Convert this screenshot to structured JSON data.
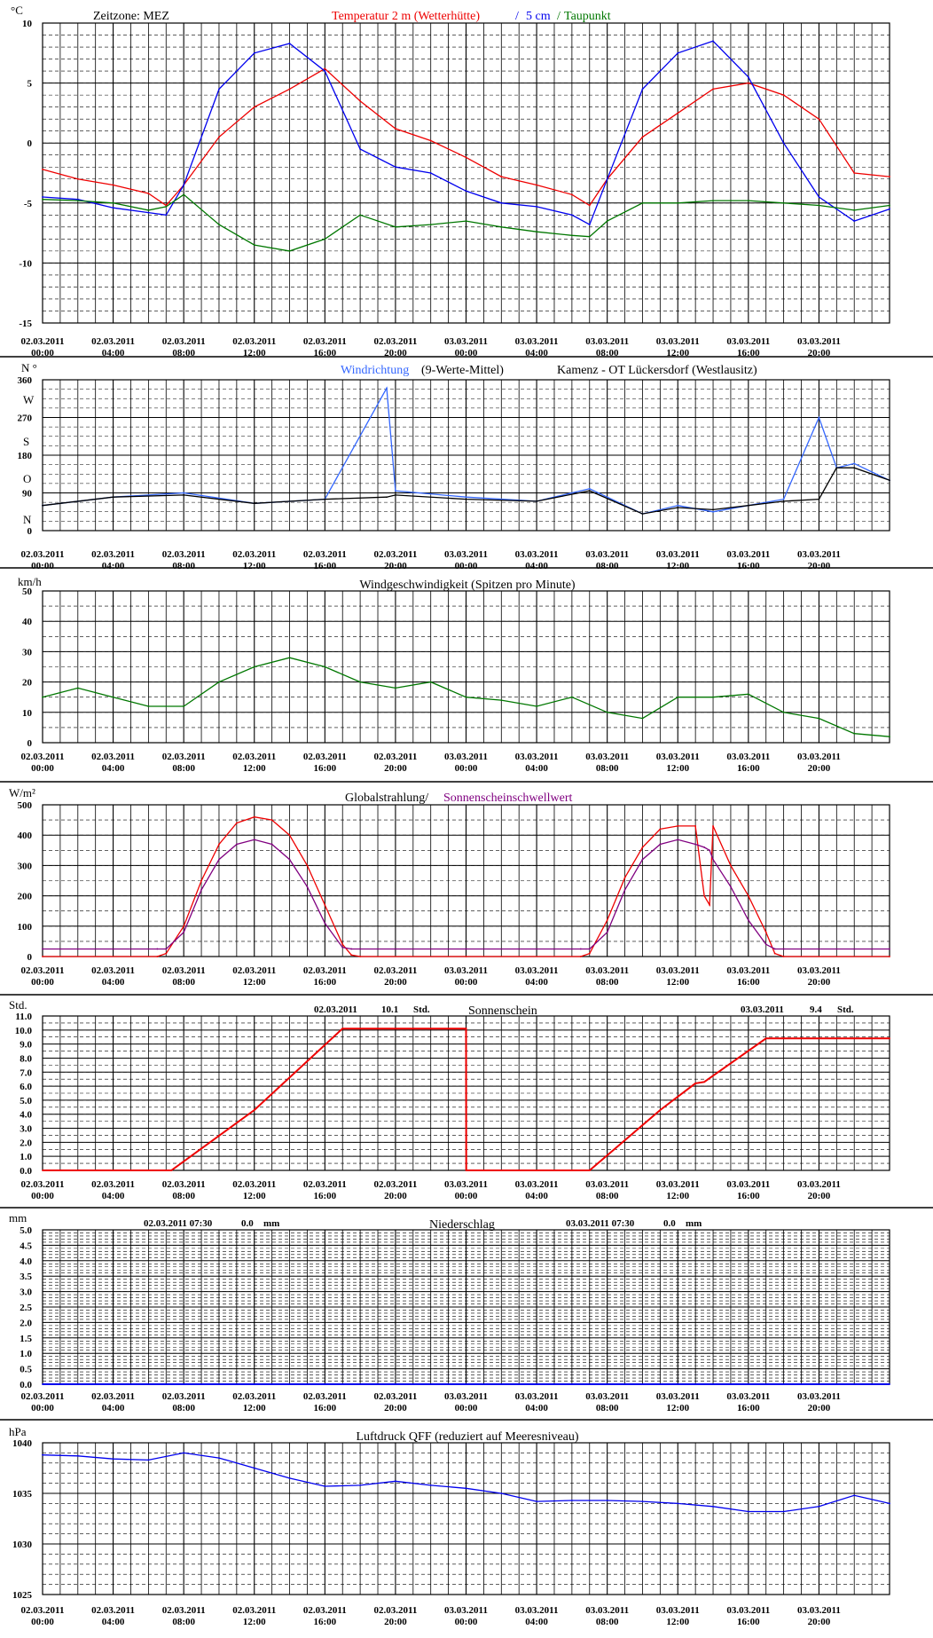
{
  "colors": {
    "red": "#ee0000",
    "blue": "#0000ee",
    "green": "#007700",
    "windblue": "#3366ff",
    "purple": "#800080",
    "black": "#000000"
  },
  "x_labels": [
    [
      "02.03.2011",
      "00:00"
    ],
    [
      "02.03.2011",
      "04:00"
    ],
    [
      "02.03.2011",
      "08:00"
    ],
    [
      "02.03.2011",
      "12:00"
    ],
    [
      "02.03.2011",
      "16:00"
    ],
    [
      "02.03.2011",
      "20:00"
    ],
    [
      "03.03.2011",
      "00:00"
    ],
    [
      "03.03.2011",
      "04:00"
    ],
    [
      "03.03.2011",
      "08:00"
    ],
    [
      "03.03.2011",
      "12:00"
    ],
    [
      "03.03.2011",
      "16:00"
    ],
    [
      "03.03.2011",
      "20:00"
    ]
  ],
  "panels": {
    "temperature": {
      "unit": "°C",
      "zone": "Zeitzone: MEZ",
      "title_red": "Temperatur 2 m (Wetterhütte)",
      "sep1": "/",
      "title_blue": "5 cm",
      "sep2": "/",
      "title_green": "Taupunkt",
      "y_ticks": [
        "10",
        "5",
        "0",
        "-5",
        "-10",
        "-15"
      ]
    },
    "wind_direction": {
      "unit": "N °",
      "title_blue": "Windrichtung",
      "title_black": "(9-Werte-Mittel)",
      "location": "Kamenz - OT Lückersdorf (Westlausitz)",
      "y_ticks": [
        "360",
        "270",
        "180",
        "90",
        "0"
      ],
      "compass": [
        "W",
        "S",
        "O",
        "N"
      ]
    },
    "wind_speed": {
      "unit": "km/h",
      "title": "Windgeschwindigkeit (Spitzen pro Minute)",
      "y_ticks": [
        "50",
        "40",
        "30",
        "20",
        "10",
        "0"
      ]
    },
    "radiation": {
      "unit": "W/m²",
      "title_black": "Globalstrahlung/",
      "title_purple": "Sonnenscheinschwellwert",
      "y_ticks": [
        "500",
        "400",
        "300",
        "200",
        "100",
        "0"
      ]
    },
    "sunshine": {
      "unit": "Std.",
      "title": "Sonnenschein",
      "day1_date": "02.03.2011",
      "day1_value": "10.1",
      "day1_unit": "Std.",
      "day2_date": "03.03.2011",
      "day2_value": "9.4",
      "day2_unit": "Std.",
      "y_ticks": [
        "11.0",
        "10.0",
        "9.0",
        "8.0",
        "7.0",
        "6.0",
        "5.0",
        "4.0",
        "3.0",
        "2.0",
        "1.0",
        "0.0"
      ]
    },
    "precipitation": {
      "unit": "mm",
      "title": "Niederschlag",
      "day1_stamp": "02.03.2011 07:30",
      "day1_value": "0.0",
      "day1_unit": "mm",
      "day2_stamp": "03.03.2011 07:30",
      "day2_value": "0.0",
      "day2_unit": "mm",
      "y_ticks": [
        "5.0",
        "4.5",
        "4.0",
        "3.5",
        "3.0",
        "2.5",
        "2.0",
        "1.5",
        "1.0",
        "0.5",
        "0.0"
      ]
    },
    "pressure": {
      "unit": "hPa",
      "title": "Luftdruck QFF (reduziert auf Meeresniveau)",
      "y_ticks": [
        "1040",
        "1035",
        "1030",
        "1025"
      ]
    }
  },
  "chart_data": [
    {
      "type": "line",
      "title": "Temperatur 2 m (Wetterhütte) / 5 cm / Taupunkt",
      "ylabel": "°C",
      "ylim": [
        -15,
        10
      ],
      "x_hours": [
        0,
        2,
        4,
        6,
        7,
        8,
        10,
        12,
        14,
        16,
        18,
        20,
        22,
        24,
        26,
        28,
        30,
        31,
        32,
        34,
        36,
        38,
        40,
        42,
        44,
        46,
        48
      ],
      "series": [
        {
          "name": "Temperatur 2 m (Wetterhütte)",
          "color": "#ee0000",
          "values": [
            -2.2,
            -3.0,
            -3.5,
            -4.2,
            -5.2,
            -3.5,
            0.5,
            3.0,
            4.5,
            6.2,
            3.5,
            1.2,
            0.2,
            -1.2,
            -2.8,
            -3.5,
            -4.3,
            -5.2,
            -3.0,
            0.5,
            2.5,
            4.5,
            5.0,
            4.0,
            2.0,
            -2.5,
            -2.8
          ]
        },
        {
          "name": "5 cm",
          "color": "#0000ee",
          "values": [
            -4.5,
            -4.7,
            -5.4,
            -5.8,
            -6.0,
            -3.5,
            4.5,
            7.5,
            8.3,
            6.0,
            -0.5,
            -2.0,
            -2.5,
            -4.0,
            -5.0,
            -5.3,
            -6.0,
            -6.8,
            -3.0,
            4.5,
            7.5,
            8.5,
            5.5,
            0.0,
            -4.5,
            -6.5,
            -5.5
          ]
        },
        {
          "name": "Taupunkt",
          "color": "#007700",
          "values": [
            -4.7,
            -4.8,
            -5.0,
            -5.6,
            -5.3,
            -4.3,
            -6.8,
            -8.5,
            -9.0,
            -8.0,
            -6.0,
            -7.0,
            -6.8,
            -6.5,
            -7.0,
            -7.4,
            -7.7,
            -7.8,
            -6.5,
            -5.0,
            -5.0,
            -4.8,
            -4.8,
            -5.0,
            -5.2,
            -5.6,
            -5.2
          ]
        }
      ]
    },
    {
      "type": "line",
      "title": "Windrichtung (9-Werte-Mittel)",
      "ylabel": "N °",
      "ylim": [
        0,
        360
      ],
      "x_hours": [
        0,
        4,
        8,
        12,
        16,
        19.5,
        20,
        24,
        28,
        31,
        34,
        36,
        38,
        40,
        42,
        44,
        45,
        46,
        48
      ],
      "series": [
        {
          "name": "Windrichtung",
          "color": "#3366ff",
          "values": [
            60,
            80,
            90,
            65,
            75,
            340,
            95,
            80,
            70,
            100,
            40,
            60,
            45,
            60,
            75,
            270,
            150,
            160,
            120
          ]
        },
        {
          "name": "(9-Werte-Mittel)",
          "color": "#000000",
          "values": [
            60,
            80,
            85,
            65,
            75,
            80,
            85,
            75,
            70,
            95,
            40,
            55,
            50,
            60,
            70,
            75,
            150,
            150,
            120
          ]
        }
      ]
    },
    {
      "type": "line",
      "title": "Windgeschwindigkeit (Spitzen pro Minute)",
      "ylabel": "km/h",
      "ylim": [
        0,
        50
      ],
      "x_hours": [
        0,
        2,
        4,
        6,
        8,
        10,
        12,
        14,
        16,
        18,
        20,
        22,
        24,
        26,
        28,
        30,
        32,
        34,
        36,
        38,
        40,
        42,
        44,
        46,
        48
      ],
      "series": [
        {
          "name": "Windgeschwindigkeit (Spitzen pro Minute)",
          "color": "#007700",
          "values": [
            15,
            18,
            15,
            12,
            12,
            20,
            25,
            28,
            25,
            20,
            18,
            20,
            15,
            14,
            12,
            15,
            10,
            8,
            15,
            15,
            16,
            10,
            8,
            3,
            2
          ]
        }
      ]
    },
    {
      "type": "line",
      "title": "Globalstrahlung/ Sonnenscheinschwellwert",
      "ylabel": "W/m²",
      "ylim": [
        0,
        500
      ],
      "x_hours": [
        0,
        6.5,
        7,
        8,
        9,
        10,
        11,
        12,
        13,
        14,
        15,
        16,
        17,
        17.5,
        18,
        24,
        30.5,
        31,
        32,
        33,
        34,
        35,
        36,
        37,
        37.5,
        37.8,
        38,
        39,
        40,
        41,
        41.5,
        42,
        48
      ],
      "series": [
        {
          "name": "Globalstrahlung",
          "color": "#ee0000",
          "values": [
            0,
            0,
            10,
            100,
            250,
            370,
            440,
            460,
            450,
            400,
            300,
            170,
            40,
            5,
            0,
            0,
            0,
            10,
            120,
            260,
            360,
            420,
            430,
            430,
            200,
            170,
            430,
            300,
            200,
            80,
            10,
            0,
            0
          ]
        },
        {
          "name": "Sonnenscheinschwellwert",
          "color": "#800080",
          "values": [
            25,
            25,
            25,
            80,
            220,
            320,
            370,
            385,
            370,
            320,
            230,
            110,
            30,
            25,
            25,
            25,
            25,
            25,
            80,
            220,
            320,
            370,
            385,
            370,
            360,
            350,
            320,
            230,
            120,
            40,
            25,
            25,
            25
          ]
        }
      ]
    },
    {
      "type": "line",
      "title": "Sonnenschein",
      "ylabel": "Std.",
      "ylim": [
        0,
        11
      ],
      "x_hours": [
        0,
        7.3,
        12,
        17,
        24,
        24.01,
        31,
        35,
        37,
        37.5,
        41,
        48
      ],
      "series": [
        {
          "name": "Sonnenschein",
          "color": "#ee0000",
          "values": [
            0,
            0,
            4.3,
            10.1,
            10.1,
            0,
            0,
            4.3,
            6.2,
            6.3,
            9.4,
            9.4
          ]
        }
      ]
    },
    {
      "type": "line",
      "title": "Niederschlag",
      "ylabel": "mm",
      "ylim": [
        0,
        5
      ],
      "x_hours": [
        0,
        48
      ],
      "series": [
        {
          "name": "Niederschlag",
          "color": "#0000ee",
          "values": [
            0,
            0
          ]
        }
      ]
    },
    {
      "type": "line",
      "title": "Luftdruck QFF (reduziert auf Meeresniveau)",
      "ylabel": "hPa",
      "ylim": [
        1025,
        1040
      ],
      "x_hours": [
        0,
        2,
        4,
        6,
        8,
        10,
        12,
        14,
        16,
        18,
        20,
        22,
        24,
        26,
        28,
        30,
        32,
        34,
        36,
        38,
        40,
        42,
        44,
        46,
        48
      ],
      "series": [
        {
          "name": "Luftdruck QFF (reduziert auf Meeresniveau)",
          "color": "#0000ee",
          "values": [
            1038.8,
            1038.7,
            1038.4,
            1038.3,
            1039.0,
            1038.5,
            1037.5,
            1036.5,
            1035.7,
            1035.8,
            1036.2,
            1035.8,
            1035.5,
            1035.0,
            1034.2,
            1034.3,
            1034.3,
            1034.2,
            1034.0,
            1033.7,
            1033.2,
            1033.2,
            1033.7,
            1034.8,
            1034.0
          ]
        }
      ]
    }
  ]
}
